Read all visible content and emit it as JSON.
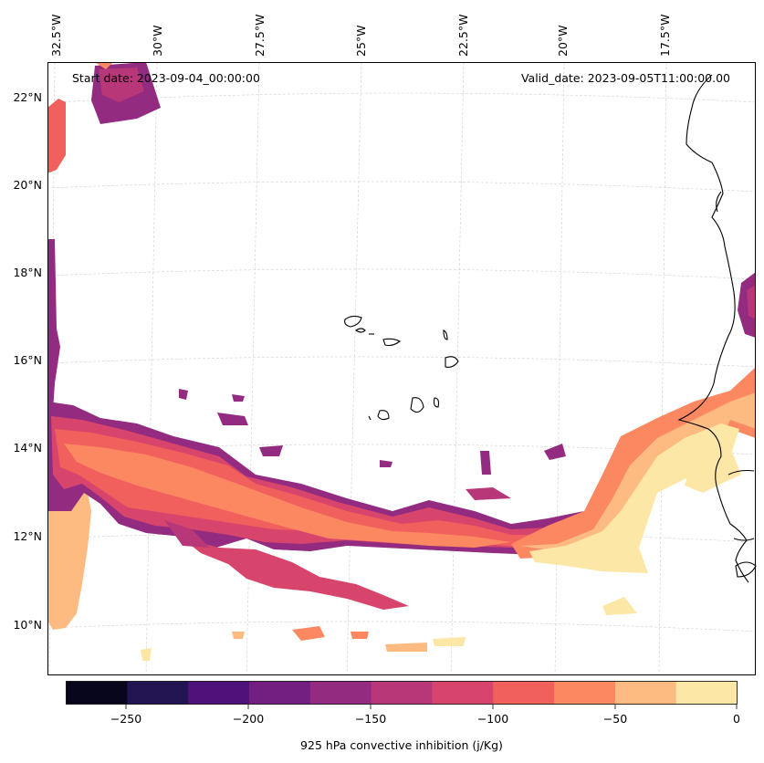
{
  "header": {
    "start_label": "Start date: 2023-09-04_00:00:00",
    "valid_label": "Valid_date: 2023-09-05T11:00:00.00"
  },
  "axes": {
    "lon_labels": [
      "32.5°W",
      "30°W",
      "27.5°W",
      "25°W",
      "22.5°W",
      "20°W",
      "17.5°W"
    ],
    "lat_labels": [
      "22°N",
      "20°N",
      "18°N",
      "16°N",
      "14°N",
      "12°N",
      "10°N"
    ]
  },
  "colorbar": {
    "title": "925 hPa convective inhibition (j/Kg)",
    "tick_labels": [
      "−250",
      "−200",
      "−150",
      "−100",
      "−50",
      "0"
    ],
    "colors": [
      "#07061c",
      "#231452",
      "#4f127b",
      "#721f81",
      "#932b80",
      "#b73779",
      "#d8456c",
      "#f1605d",
      "#fb8861",
      "#febb81",
      "#fde7a6"
    ]
  },
  "colors": {
    "grid": "#cfcfcf",
    "coast": "#000000",
    "frame": "#000000"
  }
}
